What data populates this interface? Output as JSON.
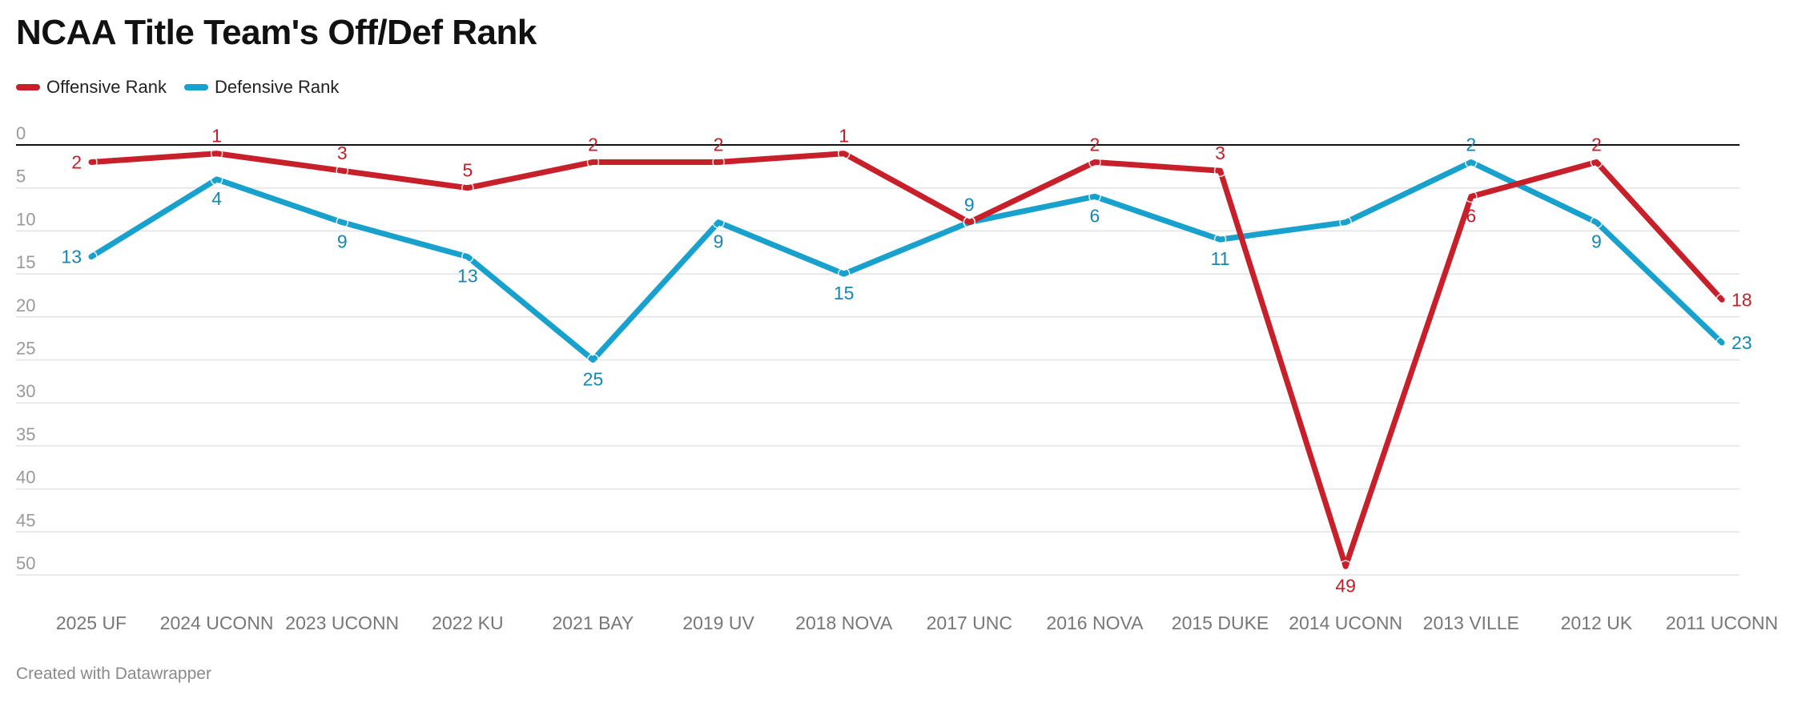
{
  "header": {
    "title": "NCAA Title Team's Off/Def Rank"
  },
  "legend": {
    "items": [
      {
        "label": "Offensive Rank",
        "color": "#c8202a"
      },
      {
        "label": "Defensive Rank",
        "color": "#18a1cd"
      }
    ]
  },
  "footer": {
    "credit": "Created with Datawrapper"
  },
  "chart_data": {
    "type": "line",
    "title": "NCAA Title Team's Off/Def Rank",
    "xlabel": "",
    "ylabel": "",
    "y_inverted": true,
    "ylim": [
      0,
      50
    ],
    "yticks": [
      0,
      5,
      10,
      15,
      20,
      25,
      30,
      35,
      40,
      45,
      50
    ],
    "grid": true,
    "legend_position": "top-left",
    "categories": [
      "2025 UF",
      "2024 UCONN",
      "2023 UCONN",
      "2022 KU",
      "2021 BAY",
      "2019 UV",
      "2018 NOVA",
      "2017 UNC",
      "2016 NOVA",
      "2015 DUKE",
      "2014 UCONN",
      "2013 VILLE",
      "2012 UK",
      "2011 UCONN"
    ],
    "series": [
      {
        "name": "Offensive Rank",
        "color": "#c8202a",
        "label_color": "#c0202a",
        "values": [
          2,
          1,
          3,
          5,
          2,
          2,
          1,
          9,
          2,
          3,
          49,
          6,
          2,
          18
        ],
        "labels": [
          "2",
          "1",
          "3",
          "5",
          "2",
          "2",
          "1",
          "",
          "2",
          "3",
          "49",
          "6",
          "2",
          "18"
        ]
      },
      {
        "name": "Defensive Rank",
        "color": "#18a1cd",
        "label_color": "#1587b0",
        "values": [
          13,
          4,
          9,
          13,
          25,
          9,
          15,
          9,
          6,
          11,
          9,
          2,
          9,
          23
        ],
        "labels": [
          "13",
          "4",
          "9",
          "13",
          "25",
          "9",
          "15",
          "9",
          "6",
          "11",
          "",
          "2",
          "9",
          "23"
        ]
      }
    ]
  }
}
